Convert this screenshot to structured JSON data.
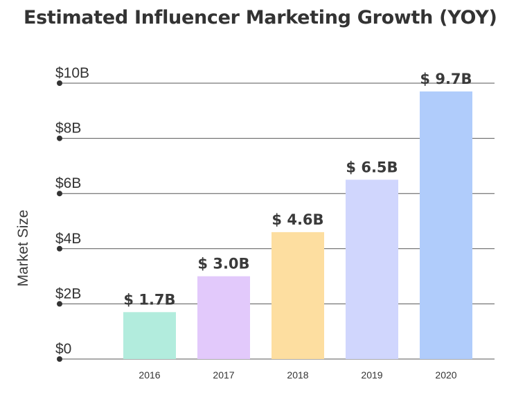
{
  "chart_data": {
    "type": "bar",
    "title": "Estimated Influencer Marketing Growth (YOY)",
    "xlabel": "",
    "ylabel": "Market Size",
    "categories": [
      "2016",
      "2017",
      "2018",
      "2019",
      "2020"
    ],
    "values": [
      1.7,
      3.0,
      4.6,
      6.5,
      9.7
    ],
    "data_labels": [
      "$ 1.7B",
      "$ 3.0B",
      "$ 4.6B",
      "$ 6.5B",
      "$ 9.7B"
    ],
    "y_ticks": [
      0,
      2,
      4,
      6,
      8,
      10
    ],
    "y_tick_labels": [
      "$0",
      "$2B",
      "$4B",
      "$6B",
      "$8B",
      "$10B"
    ],
    "ylim": [
      0,
      10
    ],
    "grid": true,
    "bar_colors": [
      "#b2ecdd",
      "#e2c9fb",
      "#fddea0",
      "#d0d6fd",
      "#b0ccfb"
    ],
    "grid_color": "#555555"
  }
}
